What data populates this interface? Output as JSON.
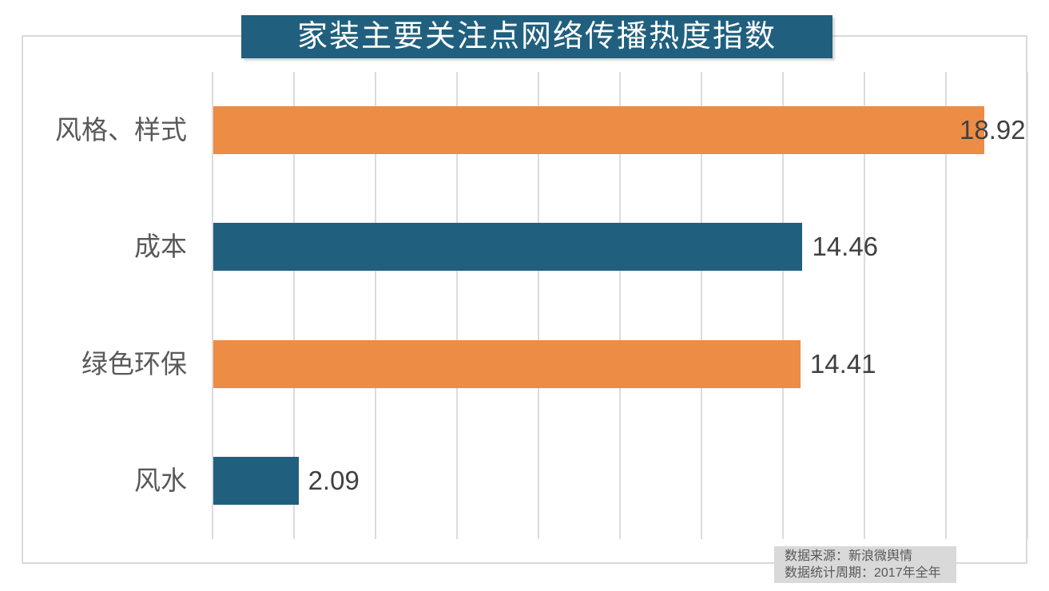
{
  "chart_data": {
    "type": "bar",
    "orientation": "horizontal",
    "title": "家装主要关注点网络传播热度指数",
    "categories": [
      "风格、样式",
      "成本",
      "绿色环保",
      "风水"
    ],
    "values": [
      18.92,
      14.46,
      14.41,
      2.09
    ],
    "value_labels": [
      "18.92",
      "14.46",
      "14.41",
      "2.09"
    ],
    "bar_colors": [
      "#EC8C45",
      "#20607E",
      "#EC8C45",
      "#20607E"
    ],
    "xlim": [
      0,
      20
    ],
    "grid": {
      "show": true,
      "step": 2,
      "line_count": 11,
      "orientation": "vertical"
    },
    "legend_position": "none",
    "xlabel": "",
    "ylabel": ""
  },
  "title": {
    "text": "家装主要关注点网络传播热度指数"
  },
  "source": {
    "line1": "数据来源：新浪微舆情",
    "line2": "数据统计周期：2017年全年"
  },
  "colors": {
    "banner_bg": "#20607E",
    "banner_text": "#FFFFFF",
    "bar_orange": "#EC8C45",
    "bar_teal": "#20607E",
    "gridline": "#DCDCDC",
    "frame_border": "#D9D9D9",
    "category_text": "#595959",
    "value_text": "#404040",
    "source_bg": "#D9D9D9",
    "source_text": "#595959"
  }
}
